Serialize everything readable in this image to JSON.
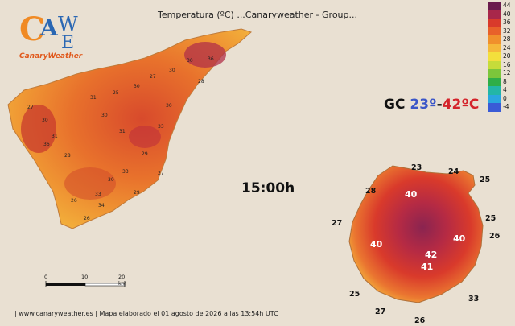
{
  "title": "Temperatura (ºC)    ...Canaryweather - Group...",
  "logo": {
    "letters": "CAWE",
    "brand": "CanaryWeather"
  },
  "time": "15:00h",
  "gc_range": {
    "prefix": "GC ",
    "low": "23º",
    "sep": "-",
    "high": "42ºC"
  },
  "footer": "|  www.canaryweather.es  |     Mapa elaborado el 01 agosto de 2026 a las 13:54h UTC",
  "scale_labels": [
    "0",
    "10",
    "20 km"
  ],
  "legend": [
    {
      "label": "44",
      "color": "#6a1b4d"
    },
    {
      "label": "40",
      "color": "#a8274a"
    },
    {
      "label": "36",
      "color": "#d93a2b"
    },
    {
      "label": "32",
      "color": "#e8612a"
    },
    {
      "label": "28",
      "color": "#f0902c"
    },
    {
      "label": "24",
      "color": "#f5b83a"
    },
    {
      "label": "20",
      "color": "#f3df3c"
    },
    {
      "label": "16",
      "color": "#c6dc3a"
    },
    {
      "label": "12",
      "color": "#7cc63b"
    },
    {
      "label": "8",
      "color": "#2fae48"
    },
    {
      "label": "4",
      "color": "#23b6a7"
    },
    {
      "label": "0",
      "color": "#2aa6e0"
    },
    {
      "label": "-4",
      "color": "#3a5bd6"
    }
  ],
  "gc_labels": {
    "t23": "23",
    "t24": "24",
    "t25a": "25",
    "t28": "28",
    "t40a": "40",
    "t27a": "27",
    "t25b": "25",
    "t40b": "40",
    "t26a": "26",
    "t40c": "40",
    "t42": "42",
    "t41": "41",
    "t25c": "25",
    "t33": "33",
    "t27b": "27",
    "t26b": "26"
  },
  "tf_labels": [
    "27",
    "30",
    "31",
    "28",
    "31",
    "25",
    "30",
    "27",
    "30",
    "30",
    "28",
    "30",
    "33",
    "29",
    "33",
    "27",
    "26",
    "33",
    "30",
    "36",
    "26",
    "30",
    "31",
    "36",
    "34",
    "29"
  ]
}
